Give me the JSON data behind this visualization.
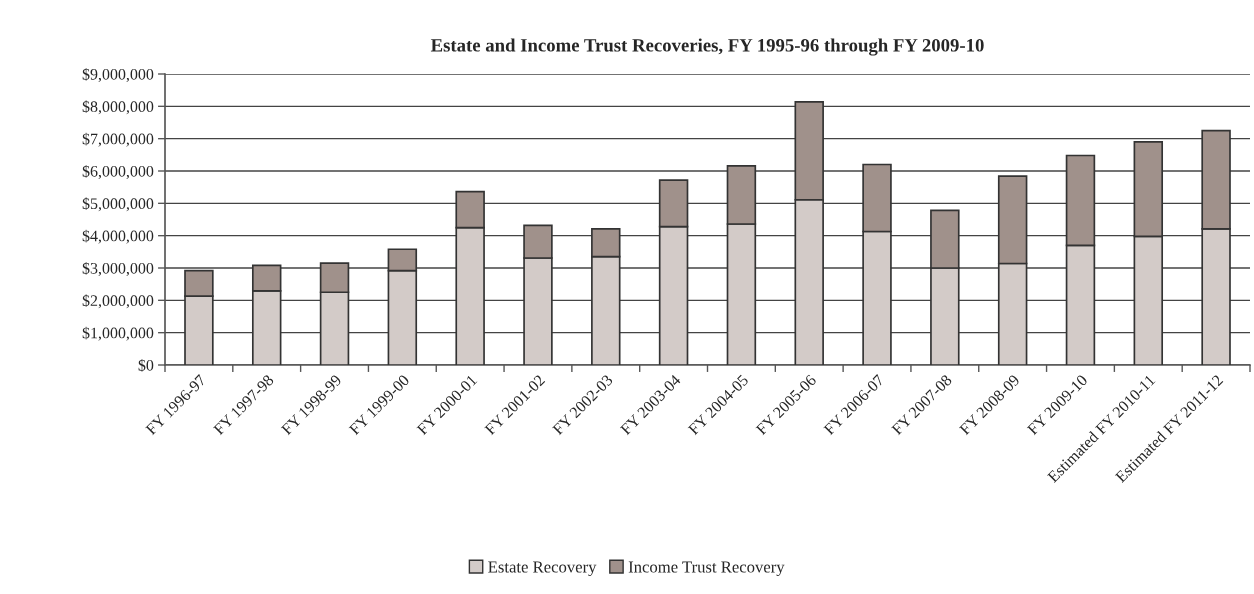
{
  "chart_data": {
    "type": "bar",
    "title": "Estate and Income Trust Recoveries, FY 1995-96 through FY 2009-10",
    "categories": [
      "FY 1996-97",
      "FY 1997-98",
      "FY 1998-99",
      "FY 1999-00",
      "FY 2000-01",
      "FY 2001-02",
      "FY 2002-03",
      "FY 2003-04",
      "FY 2004-05",
      "FY 2005-06",
      "FY 2006-07",
      "FY 2007-08",
      "FY 2008-09",
      "FY 2009-10",
      "Estimated FY 2010-11",
      "Estimated FY 2011-12"
    ],
    "stacked": true,
    "series": [
      {
        "name": "Estate Recovery",
        "color": "#d3cbc8",
        "values": [
          2130000,
          2290000,
          2250000,
          2920000,
          4250000,
          3310000,
          3350000,
          4280000,
          4360000,
          5110000,
          4130000,
          3000000,
          3140000,
          3700000,
          3980000,
          4210000
        ]
      },
      {
        "name": "Income Trust Recovery",
        "color": "#a0918b",
        "values": [
          790000,
          790000,
          900000,
          660000,
          1110000,
          1010000,
          860000,
          1440000,
          1800000,
          3030000,
          2070000,
          1780000,
          2700000,
          2780000,
          2920000,
          3040000
        ]
      }
    ],
    "ylim": [
      0,
      9000000
    ],
    "yticks": [
      {
        "value": 0,
        "label": "$0"
      },
      {
        "value": 1000000,
        "label": "$1,000,000"
      },
      {
        "value": 2000000,
        "label": "$2,000,000"
      },
      {
        "value": 3000000,
        "label": "$3,000,000"
      },
      {
        "value": 4000000,
        "label": "$4,000,000"
      },
      {
        "value": 5000000,
        "label": "$5,000,000"
      },
      {
        "value": 6000000,
        "label": "$6,000,000"
      },
      {
        "value": 7000000,
        "label": "$7,000,000"
      },
      {
        "value": 8000000,
        "label": "$8,000,000"
      },
      {
        "value": 9000000,
        "label": "$9,000,000"
      }
    ],
    "grid": "y",
    "legend": "bottom"
  }
}
